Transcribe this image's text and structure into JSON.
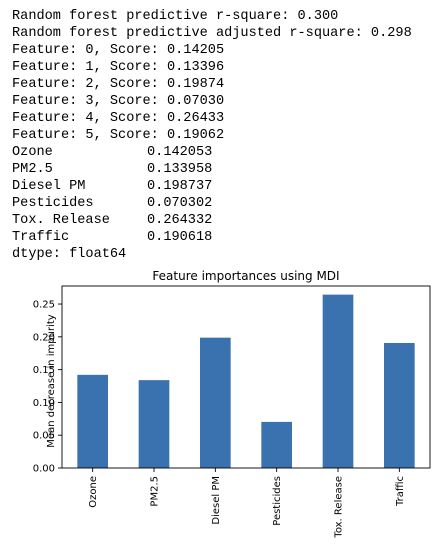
{
  "console": {
    "r_square_line": "Random forest predictive r-square: 0.300",
    "adj_r_square_line": "Random forest predictive adjusted r-square: 0.298",
    "feature_score_lines": [
      "Feature: 0, Score: 0.14205",
      "Feature: 1, Score: 0.13396",
      "Feature: 2, Score: 0.19874",
      "Feature: 3, Score: 0.07030",
      "Feature: 4, Score: 0.26433",
      "Feature: 5, Score: 0.19062"
    ],
    "series": [
      {
        "name": "Ozone",
        "value": "0.142053"
      },
      {
        "name": "PM2.5",
        "value": "0.133958"
      },
      {
        "name": "Diesel PM",
        "value": "0.198737"
      },
      {
        "name": "Pesticides",
        "value": "0.070302"
      },
      {
        "name": "Tox. Release",
        "value": "0.264332"
      },
      {
        "name": "Traffic",
        "value": "0.190618"
      }
    ],
    "dtype_line": "dtype: float64"
  },
  "chart_data": {
    "type": "bar",
    "title": "Feature importances using MDI",
    "xlabel": "",
    "ylabel": "Mean decrease in impurity",
    "categories": [
      "Ozone",
      "PM2.5",
      "Diesel PM",
      "Pesticides",
      "Tox. Release",
      "Traffic"
    ],
    "values": [
      0.142053,
      0.133958,
      0.198737,
      0.070302,
      0.264332,
      0.190618
    ],
    "ylim": [
      0,
      0.2775
    ],
    "yticks": [
      0.0,
      0.05,
      0.1,
      0.15,
      0.2,
      0.25
    ],
    "ytick_labels": [
      "0.00",
      "0.05",
      "0.10",
      "0.15",
      "0.20",
      "0.25"
    ],
    "bar_color": "#3a72b0",
    "grid": false,
    "legend": "none"
  }
}
